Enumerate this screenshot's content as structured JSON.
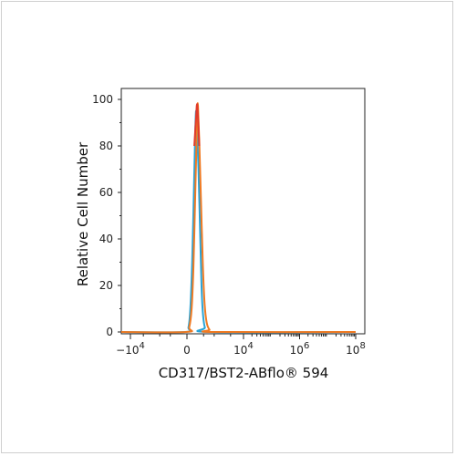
{
  "chart_data": {
    "type": "line",
    "title": "",
    "xlabel": "CD317/BST2-ABflo® 594",
    "ylabel": "Relative Cell Number",
    "x_scale": "biexponential",
    "ylim": [
      0,
      100
    ],
    "y_ticks": [
      0,
      20,
      40,
      60,
      80,
      100
    ],
    "x_tick_labels": [
      {
        "base": "−10",
        "exp": "4",
        "value": -10000
      },
      {
        "base": "0",
        "exp": "",
        "value": 0
      },
      {
        "base": "10",
        "exp": "4",
        "value": 10000
      },
      {
        "base": "10",
        "exp": "6",
        "value": 1000000
      },
      {
        "base": "10",
        "exp": "8",
        "value": 100000000
      }
    ],
    "grid": false,
    "legend": "none",
    "series": [
      {
        "color": "#29a3d6",
        "peak_x": 500,
        "points": [
          [
            -100000000,
            0
          ],
          [
            -100,
            0
          ],
          [
            80,
            2
          ],
          [
            180,
            10
          ],
          [
            280,
            30
          ],
          [
            380,
            62
          ],
          [
            450,
            85
          ],
          [
            500,
            95
          ],
          [
            560,
            88
          ],
          [
            650,
            70
          ],
          [
            760,
            42
          ],
          [
            850,
            20
          ],
          [
            950,
            8
          ],
          [
            1100,
            2
          ],
          [
            1500,
            0
          ],
          [
            100000000,
            0
          ]
        ]
      },
      {
        "color": "#f07a22",
        "peak_x": 600,
        "points": [
          [
            -100000000,
            0
          ],
          [
            -50,
            0
          ],
          [
            120,
            2
          ],
          [
            250,
            10
          ],
          [
            350,
            28
          ],
          [
            450,
            58
          ],
          [
            530,
            82
          ],
          [
            590,
            96
          ],
          [
            620,
            97
          ],
          [
            700,
            82
          ],
          [
            820,
            55
          ],
          [
            950,
            28
          ],
          [
            1080,
            12
          ],
          [
            1250,
            4
          ],
          [
            1500,
            1
          ],
          [
            2000,
            0
          ],
          [
            100000000,
            0
          ]
        ]
      },
      {
        "color": "#e03a2a",
        "peak_x": 560,
        "points": [
          [
            400,
            80
          ],
          [
            500,
            92
          ],
          [
            560,
            98
          ],
          [
            620,
            92
          ],
          [
            700,
            80
          ]
        ]
      }
    ]
  }
}
